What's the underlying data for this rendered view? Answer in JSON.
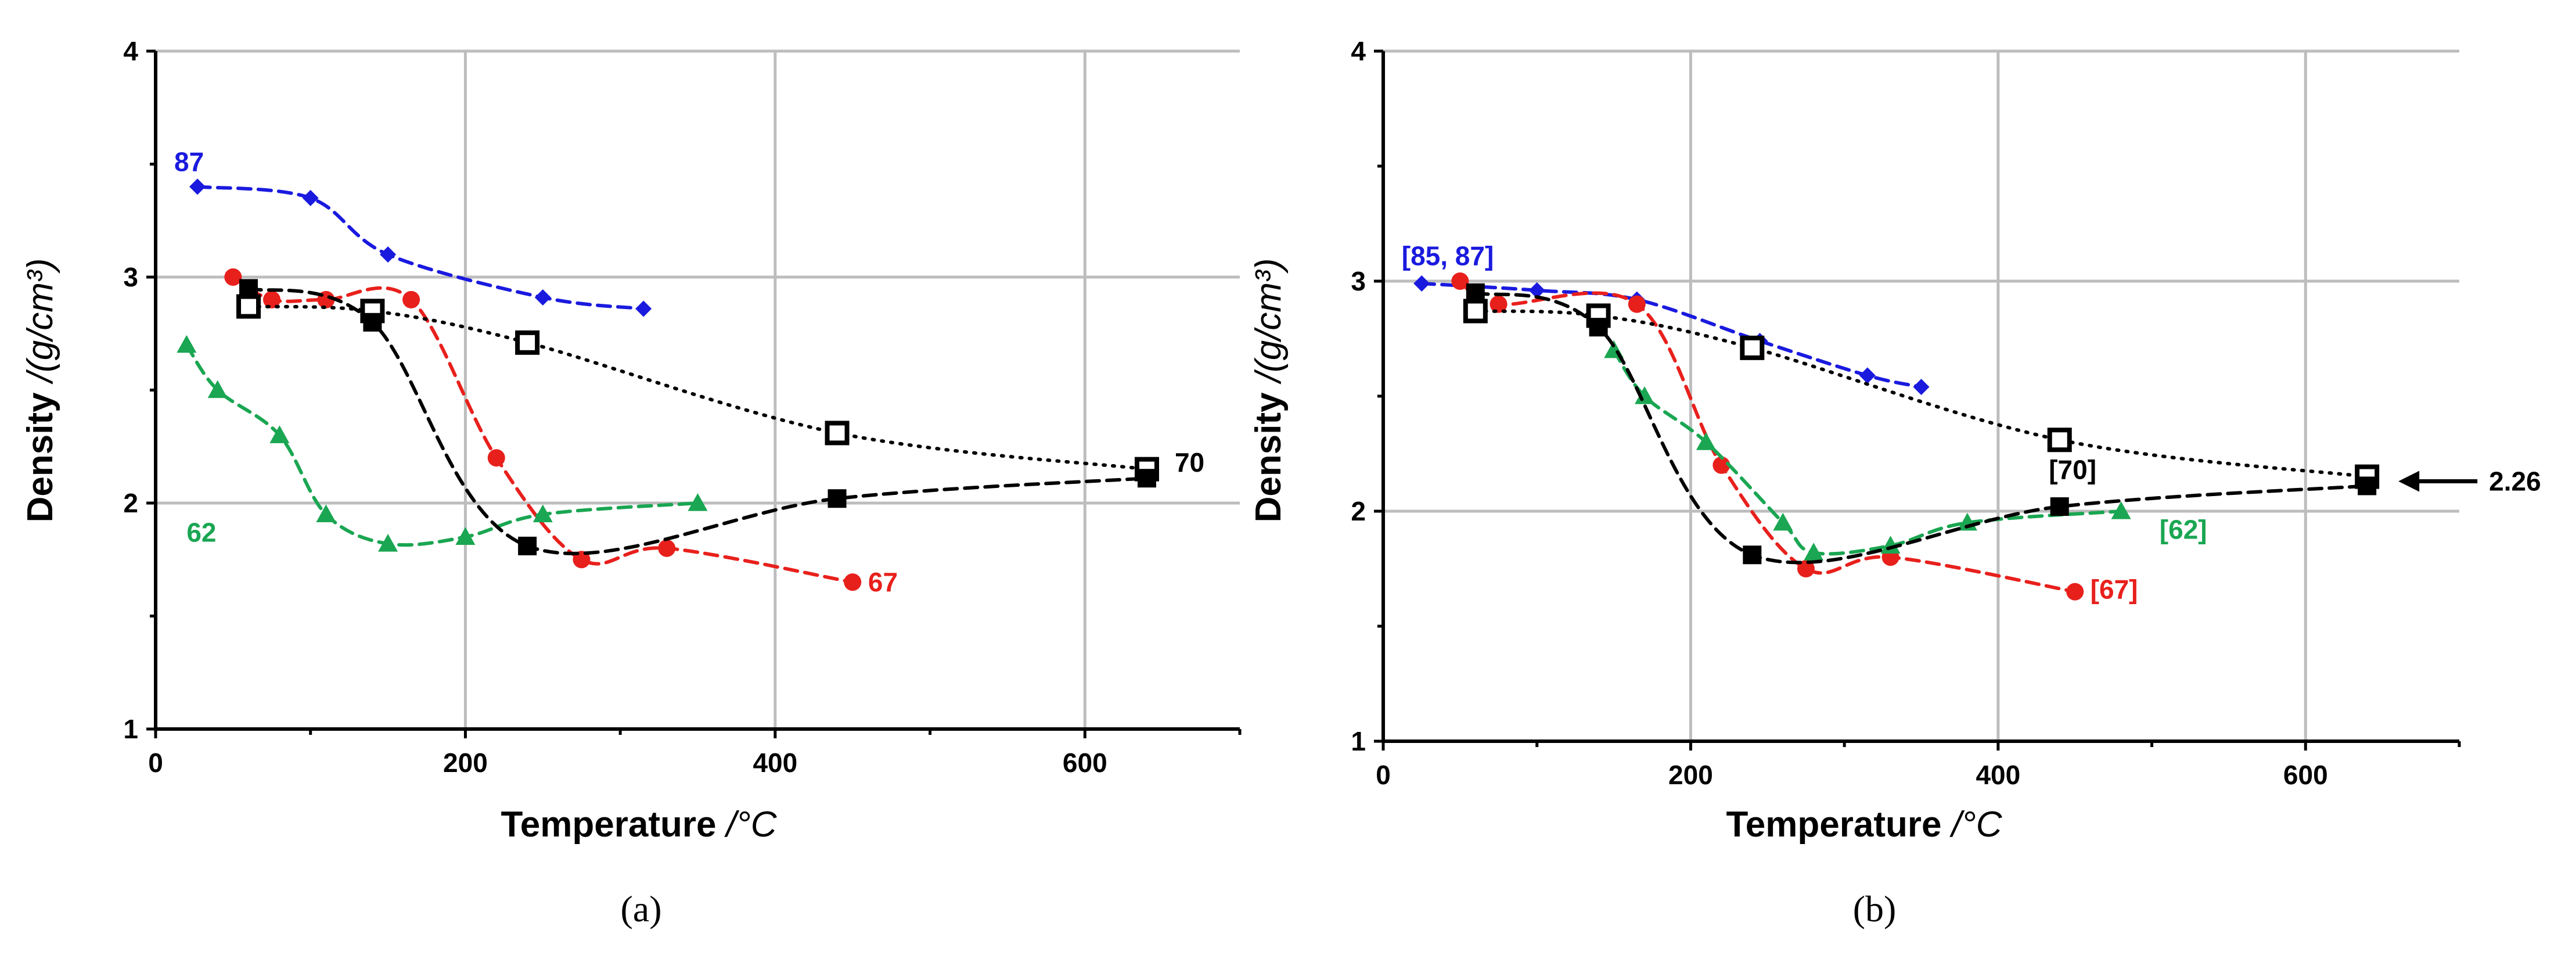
{
  "figure": {
    "background": "#ffffff",
    "grid_color": "#bdbdbd",
    "colors": {
      "blue": "#1a1adf",
      "red": "#e8201c",
      "green": "#1aa652",
      "black": "#000000"
    }
  },
  "chart_data": [
    {
      "type": "line",
      "panel": "a",
      "panel_label": "(a)",
      "xlabel_main": "Temperature",
      "xlabel_unit": " /°C",
      "ylabel_main": "Density",
      "ylabel_unit": " /(g/cm³)",
      "xlim": [
        0,
        700
      ],
      "ylim": [
        1,
        4
      ],
      "x_ticks": [
        "0",
        "200",
        "400",
        "600"
      ],
      "y_ticks": [
        "1",
        "2",
        "3",
        "4"
      ],
      "grid": true,
      "series": [
        {
          "name": "87",
          "color": "#1a1adf",
          "marker": "diamond",
          "line": "dashed",
          "x": [
            27,
            100,
            150,
            250,
            315
          ],
          "y": [
            3.4,
            3.35,
            3.1,
            2.91,
            2.86
          ],
          "label": "87",
          "label_pos": [
            12,
            3.51
          ],
          "label_anchor": "start"
        },
        {
          "name": "67",
          "color": "#e8201c",
          "marker": "circle",
          "line": "dashed",
          "x": [
            50,
            75,
            110,
            165,
            220,
            275,
            330,
            450
          ],
          "y": [
            3.0,
            2.9,
            2.9,
            2.9,
            2.2,
            1.75,
            1.8,
            1.65
          ],
          "label": "67",
          "label_pos": [
            460,
            1.65
          ],
          "label_anchor": "start"
        },
        {
          "name": "62",
          "color": "#1aa652",
          "marker": "triangle",
          "line": "dashed",
          "x": [
            20,
            40,
            80,
            110,
            150,
            200,
            250,
            350
          ],
          "y": [
            2.7,
            2.5,
            2.3,
            1.95,
            1.82,
            1.85,
            1.95,
            2.0
          ],
          "label": "62",
          "label_pos": [
            20,
            1.87
          ],
          "label_anchor": "start"
        },
        {
          "name": "70 (open)",
          "color": "#000000",
          "marker": "open-square",
          "line": "dotted",
          "x": [
            60,
            140,
            240,
            440,
            640
          ],
          "y": [
            2.87,
            2.85,
            2.71,
            2.31,
            2.15
          ]
        },
        {
          "name": "70 (filled)",
          "color": "#000000",
          "marker": "square",
          "line": "dashed",
          "x": [
            60,
            140,
            240,
            440,
            640
          ],
          "y": [
            2.95,
            2.8,
            1.81,
            2.02,
            2.11
          ],
          "label": "70",
          "label_pos": [
            658,
            2.18
          ],
          "label_anchor": "start"
        }
      ]
    },
    {
      "type": "line",
      "panel": "b",
      "panel_label": "(b)",
      "xlabel_main": "Temperature",
      "xlabel_unit": " /°C",
      "ylabel_main": "Density",
      "ylabel_unit": " /(g/cm³)",
      "xlim": [
        0,
        700
      ],
      "ylim": [
        1,
        4
      ],
      "x_ticks": [
        "0",
        "200",
        "400",
        "600"
      ],
      "y_ticks": [
        "1",
        "2",
        "3",
        "4"
      ],
      "grid": true,
      "series": [
        {
          "name": "[85, 87]",
          "color": "#1a1adf",
          "marker": "diamond",
          "line": "dashed",
          "x": [
            25,
            100,
            165,
            245,
            315,
            350
          ],
          "y": [
            2.99,
            2.96,
            2.92,
            2.74,
            2.59,
            2.54
          ],
          "label": "[85, 87]",
          "label_pos": [
            12,
            3.11
          ],
          "label_anchor": "start"
        },
        {
          "name": "[67]",
          "color": "#e8201c",
          "marker": "circle",
          "line": "dashed",
          "x": [
            50,
            75,
            165,
            220,
            275,
            330,
            450
          ],
          "y": [
            3.0,
            2.9,
            2.9,
            2.2,
            1.75,
            1.8,
            1.65
          ],
          "label": "[67]",
          "label_pos": [
            460,
            1.66
          ],
          "label_anchor": "start"
        },
        {
          "name": "[62]",
          "color": "#1aa652",
          "marker": "triangle",
          "line": "dashed",
          "x": [
            150,
            170,
            210,
            260,
            280,
            330,
            380,
            480
          ],
          "y": [
            2.7,
            2.5,
            2.3,
            1.95,
            1.82,
            1.85,
            1.95,
            2.0
          ],
          "label": "[62]",
          "label_pos": [
            505,
            1.92
          ],
          "label_anchor": "start"
        },
        {
          "name": "[70] (open)",
          "color": "#000000",
          "marker": "open-square",
          "line": "dotted",
          "x": [
            60,
            140,
            240,
            440,
            640
          ],
          "y": [
            2.87,
            2.85,
            2.71,
            2.31,
            2.15
          ]
        },
        {
          "name": "[70] (filled)",
          "color": "#000000",
          "marker": "square",
          "line": "dashed",
          "x": [
            60,
            140,
            240,
            440,
            640
          ],
          "y": [
            2.95,
            2.8,
            1.81,
            2.02,
            2.11
          ],
          "label": "[70]",
          "label_pos": [
            433,
            2.18
          ],
          "label_anchor": "start"
        }
      ],
      "annotation": {
        "text": "2.26",
        "x": 640,
        "y": 2.13
      }
    }
  ]
}
